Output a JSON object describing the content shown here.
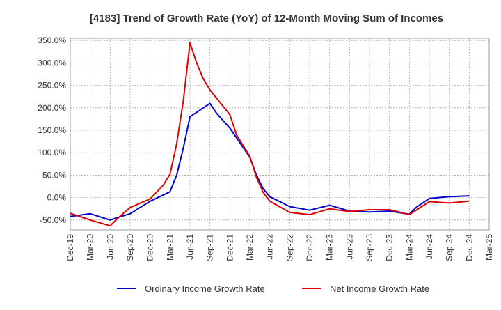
{
  "chart_data": {
    "type": "line",
    "title": "[4183]  Trend of Growth Rate (YoY) of 12-Month Moving Sum of Incomes",
    "xlabel": "",
    "ylabel": "",
    "x_ticks": [
      "Dec-19",
      "Mar-20",
      "Jun-20",
      "Sep-20",
      "Dec-20",
      "Mar-21",
      "Jun-21",
      "Sep-21",
      "Dec-21",
      "Mar-22",
      "Jun-22",
      "Sep-22",
      "Dec-22",
      "Mar-23",
      "Jun-23",
      "Sep-23",
      "Dec-23",
      "Mar-24",
      "Jun-24",
      "Sep-24",
      "Dec-24",
      "Mar-25"
    ],
    "y_ticks": [
      "350.0%",
      "300.0%",
      "250.0%",
      "200.0%",
      "150.0%",
      "100.0%",
      "50.0%",
      "0.0%",
      "-50.0%"
    ],
    "ylim": [
      -72,
      355
    ],
    "grid": true,
    "legend_position": "bottom",
    "series": [
      {
        "name": "Ordinary Income Growth Rate",
        "color": "#0000cc",
        "points": [
          [
            "Dec-19",
            -42
          ],
          [
            "Mar-20",
            -36
          ],
          [
            "Jun-20",
            -50
          ],
          [
            "Jul-20",
            -45
          ],
          [
            "Sep-20",
            -36
          ],
          [
            "Dec-20",
            -8
          ],
          [
            "Mar-21",
            13
          ],
          [
            "Apr-21",
            50
          ],
          [
            "May-21",
            110
          ],
          [
            "Jun-21",
            180
          ],
          [
            "Sep-21",
            210
          ],
          [
            "Oct-21",
            188
          ],
          [
            "Dec-21",
            155
          ],
          [
            "Mar-22",
            90
          ],
          [
            "Apr-22",
            50
          ],
          [
            "May-22",
            20
          ],
          [
            "Jun-22",
            2
          ],
          [
            "Sep-22",
            -20
          ],
          [
            "Dec-22",
            -28
          ],
          [
            "Mar-23",
            -17
          ],
          [
            "Jun-23",
            -30
          ],
          [
            "Sep-23",
            -32
          ],
          [
            "Dec-23",
            -30
          ],
          [
            "Mar-24",
            -37
          ],
          [
            "Apr-24",
            -22
          ],
          [
            "Jun-24",
            -2
          ],
          [
            "Sep-24",
            2
          ],
          [
            "Dec-24",
            4
          ]
        ]
      },
      {
        "name": "Net Income Growth Rate",
        "color": "#dd0000",
        "points": [
          [
            "Dec-19",
            -35
          ],
          [
            "Mar-20",
            -50
          ],
          [
            "Jun-20",
            -63
          ],
          [
            "Jul-20",
            -48
          ],
          [
            "Sep-20",
            -22
          ],
          [
            "Dec-20",
            -3
          ],
          [
            "Feb-21",
            28
          ],
          [
            "Mar-21",
            52
          ],
          [
            "Apr-21",
            120
          ],
          [
            "May-21",
            215
          ],
          [
            "Jun-21",
            345
          ],
          [
            "Jul-21",
            300
          ],
          [
            "Aug-21",
            265
          ],
          [
            "Sep-21",
            240
          ],
          [
            "Dec-21",
            185
          ],
          [
            "Jan-22",
            140
          ],
          [
            "Mar-22",
            92
          ],
          [
            "Apr-22",
            45
          ],
          [
            "May-22",
            12
          ],
          [
            "Jun-22",
            -8
          ],
          [
            "Sep-22",
            -33
          ],
          [
            "Dec-22",
            -38
          ],
          [
            "Mar-23",
            -25
          ],
          [
            "Jun-23",
            -31
          ],
          [
            "Sep-23",
            -27
          ],
          [
            "Dec-23",
            -27
          ],
          [
            "Mar-24",
            -38
          ],
          [
            "Jun-24",
            -9
          ],
          [
            "Sep-24",
            -12
          ],
          [
            "Dec-24",
            -8
          ]
        ]
      }
    ]
  }
}
